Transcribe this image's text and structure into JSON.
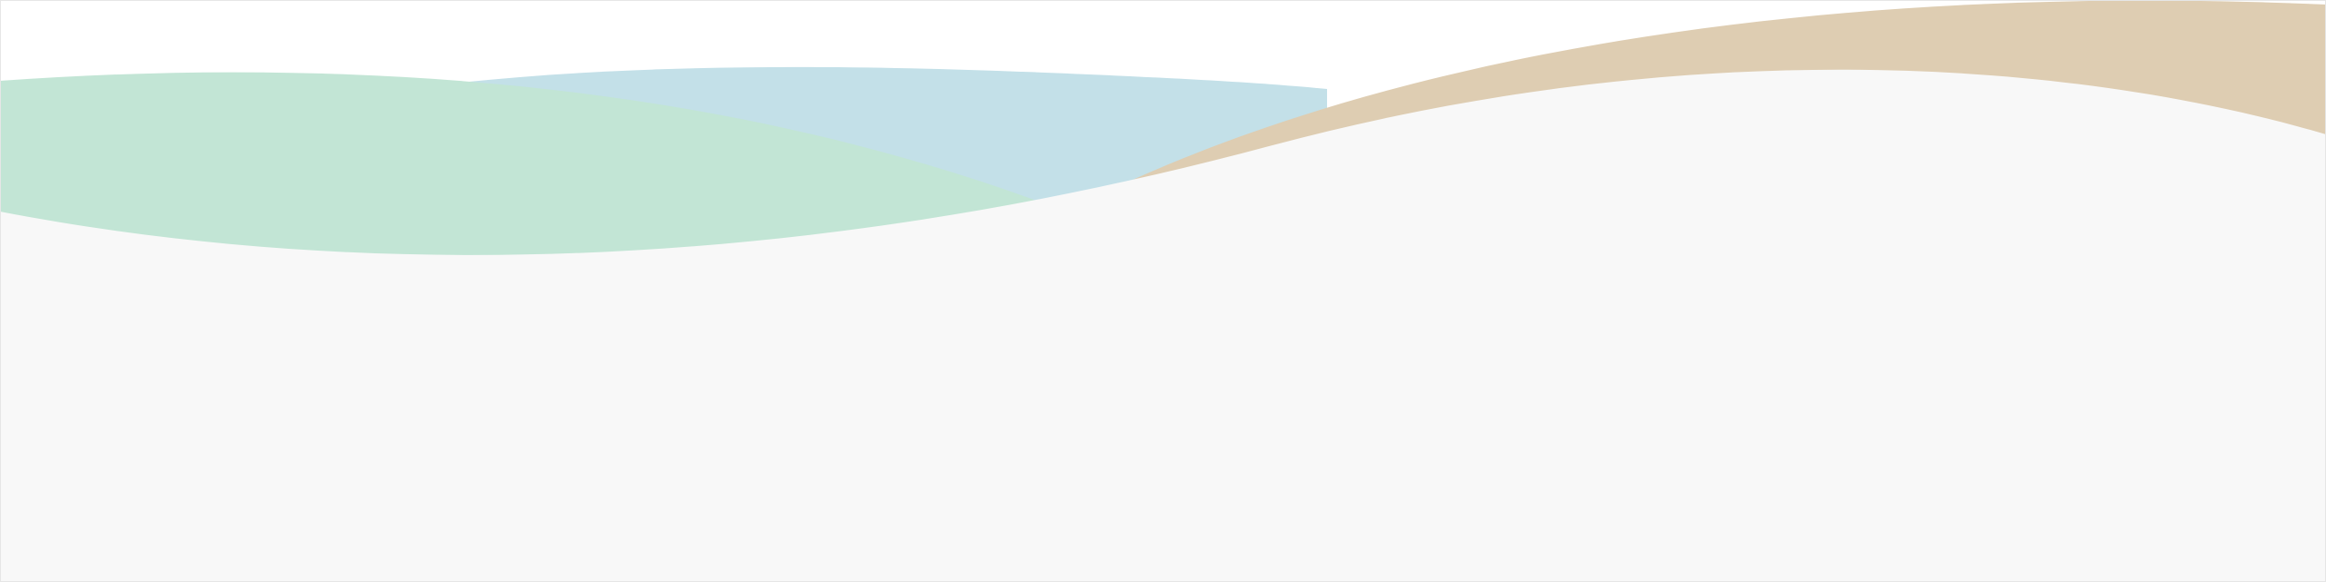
{
  "colors": {
    "background": "#ffffff",
    "wave_blue": "#c3e0e8",
    "wave_green": "#c2e5d5",
    "wave_tan": "#decdb2",
    "wave_foreground": "#f8f8f8",
    "edge": "#e6e6e6"
  }
}
